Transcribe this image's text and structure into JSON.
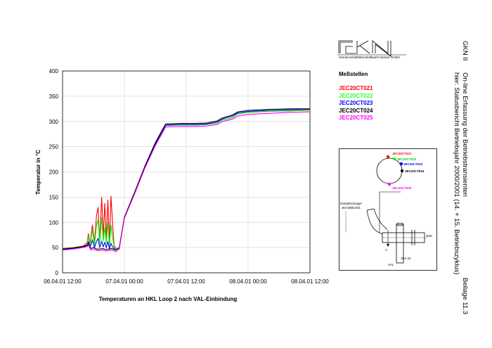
{
  "logo": {
    "text": "GKN",
    "subtitle": "Gemeinschaftskernkraftwerk Neckar GmbH"
  },
  "side_text": {
    "line1": "GKN II",
    "line2": "On-line Erfassung der Betriebstransienten",
    "line3": "hier: Statusbericht Betriebsjahr 2000/2001 (14. + 15. Betriebszyklus)",
    "line4": "Beilage 11.3"
  },
  "legend": {
    "title": "Meßstellen",
    "items": [
      {
        "label": "JEC20CT021",
        "color": "#ff0000"
      },
      {
        "label": "JEC20CT022",
        "color": "#00ff00"
      },
      {
        "label": "JEC20CT023",
        "color": "#0000ff"
      },
      {
        "label": "JEC20CT024",
        "color": "#000000"
      },
      {
        "label": "JEC20CT025",
        "color": "#ff00ff"
      }
    ]
  },
  "diagram": {
    "points": [
      "JEC20CT021",
      "JEC20CT022",
      "JEC20CT023",
      "JEC20CT024",
      "JEC20CT025"
    ],
    "label_damper": "Dampferzeuger",
    "label_damper_id": "JEA20BC001",
    "label_a": "A",
    "label_jna": "JNA 22",
    "label_val": "VAL",
    "label_jnd": "JND"
  },
  "chart_data": {
    "type": "line",
    "title": "Temperaturen an HKL Loop 2 nach VAL-Einbindung",
    "xlabel": "",
    "ylabel": "Temperatur in °C",
    "ylim": [
      0,
      400
    ],
    "yticks": [
      "0",
      "50",
      "100",
      "150",
      "200",
      "250",
      "300",
      "350",
      "400"
    ],
    "xlim_hours": [
      0,
      48
    ],
    "xticks": [
      "06.04.01 12:00",
      "07.04.01 00:00",
      "07.04.01 12:00",
      "08.04.01 00:00",
      "08.04.01 12:00"
    ],
    "grid": true,
    "series": [
      {
        "name": "JEC20CT021",
        "color": "#ff0000",
        "points": [
          [
            0,
            48
          ],
          [
            2,
            50
          ],
          [
            4,
            53
          ],
          [
            4.8,
            60
          ],
          [
            5,
            78
          ],
          [
            5.3,
            55
          ],
          [
            5.8,
            95
          ],
          [
            6.2,
            60
          ],
          [
            6.6,
            115
          ],
          [
            6.9,
            130
          ],
          [
            7.2,
            60
          ],
          [
            7.6,
            150
          ],
          [
            7.9,
            70
          ],
          [
            8.2,
            138
          ],
          [
            8.5,
            65
          ],
          [
            8.8,
            145
          ],
          [
            9.1,
            55
          ],
          [
            9.4,
            152
          ],
          [
            9.7,
            100
          ],
          [
            10,
            55
          ],
          [
            10.3,
            48
          ],
          [
            11,
            50
          ],
          [
            12,
            110
          ],
          [
            14,
            160
          ],
          [
            16,
            210
          ],
          [
            18,
            255
          ],
          [
            20,
            292
          ],
          [
            23,
            293
          ],
          [
            26,
            293
          ],
          [
            28,
            294
          ],
          [
            30,
            297
          ],
          [
            31,
            303
          ],
          [
            32,
            305
          ],
          [
            33,
            308
          ],
          [
            34,
            315
          ],
          [
            36,
            318
          ],
          [
            40,
            320
          ],
          [
            44,
            321
          ],
          [
            48,
            322
          ]
        ]
      },
      {
        "name": "JEC20CT022",
        "color": "#00ff00",
        "points": [
          [
            0,
            47
          ],
          [
            2,
            50
          ],
          [
            4,
            52
          ],
          [
            4.8,
            56
          ],
          [
            5,
            72
          ],
          [
            5.3,
            52
          ],
          [
            5.8,
            85
          ],
          [
            6.2,
            55
          ],
          [
            6.6,
            95
          ],
          [
            6.9,
            105
          ],
          [
            7.2,
            57
          ],
          [
            7.6,
            110
          ],
          [
            7.9,
            62
          ],
          [
            8.2,
            90
          ],
          [
            8.5,
            58
          ],
          [
            8.8,
            100
          ],
          [
            9.1,
            52
          ],
          [
            9.4,
            95
          ],
          [
            9.7,
            70
          ],
          [
            10,
            52
          ],
          [
            10.3,
            47
          ],
          [
            11,
            50
          ],
          [
            12,
            110
          ],
          [
            14,
            160
          ],
          [
            16,
            210
          ],
          [
            18,
            255
          ],
          [
            20,
            292
          ],
          [
            23,
            293
          ],
          [
            26,
            293
          ],
          [
            28,
            294
          ],
          [
            30,
            297
          ],
          [
            31,
            303
          ],
          [
            32,
            305
          ],
          [
            33,
            308
          ],
          [
            34,
            315
          ],
          [
            36,
            318
          ],
          [
            40,
            320
          ],
          [
            44,
            321
          ],
          [
            48,
            322
          ]
        ]
      },
      {
        "name": "JEC20CT023",
        "color": "#0000ff",
        "points": [
          [
            0,
            46
          ],
          [
            2,
            48
          ],
          [
            4,
            51
          ],
          [
            4.8,
            54
          ],
          [
            5,
            62
          ],
          [
            5.3,
            50
          ],
          [
            5.8,
            65
          ],
          [
            6.2,
            50
          ],
          [
            6.6,
            63
          ],
          [
            6.9,
            68
          ],
          [
            7.2,
            50
          ],
          [
            7.6,
            62
          ],
          [
            7.9,
            52
          ],
          [
            8.2,
            60
          ],
          [
            8.5,
            50
          ],
          [
            8.8,
            62
          ],
          [
            9.1,
            48
          ],
          [
            9.4,
            58
          ],
          [
            9.7,
            52
          ],
          [
            10,
            48
          ],
          [
            10.3,
            45
          ],
          [
            11,
            49
          ],
          [
            12,
            110
          ],
          [
            14,
            160
          ],
          [
            16,
            210
          ],
          [
            18,
            255
          ],
          [
            20,
            293
          ],
          [
            23,
            294
          ],
          [
            26,
            294
          ],
          [
            28,
            295
          ],
          [
            30,
            299
          ],
          [
            31,
            305
          ],
          [
            32,
            308
          ],
          [
            33,
            311
          ],
          [
            34,
            317
          ],
          [
            36,
            320
          ],
          [
            40,
            322
          ],
          [
            44,
            323
          ],
          [
            48,
            324
          ]
        ]
      },
      {
        "name": "JEC20CT024",
        "color": "#000000",
        "points": [
          [
            0,
            47
          ],
          [
            2,
            49
          ],
          [
            4,
            52
          ],
          [
            4.8,
            55
          ],
          [
            5,
            58
          ],
          [
            5.5,
            48
          ],
          [
            6,
            50
          ],
          [
            6.6,
            47
          ],
          [
            7.2,
            47
          ],
          [
            7.8,
            48
          ],
          [
            8.4,
            46
          ],
          [
            9,
            47
          ],
          [
            9.6,
            48
          ],
          [
            10,
            46
          ],
          [
            10.3,
            45
          ],
          [
            11,
            49
          ],
          [
            12,
            110
          ],
          [
            14,
            160
          ],
          [
            16,
            212
          ],
          [
            18,
            258
          ],
          [
            20,
            295
          ],
          [
            23,
            296
          ],
          [
            26,
            296
          ],
          [
            28,
            297
          ],
          [
            30,
            301
          ],
          [
            31,
            307
          ],
          [
            32,
            310
          ],
          [
            33,
            313
          ],
          [
            34,
            319
          ],
          [
            36,
            322
          ],
          [
            40,
            324
          ],
          [
            44,
            325
          ],
          [
            48,
            325
          ]
        ]
      },
      {
        "name": "JEC20CT025",
        "color": "#ff00ff",
        "points": [
          [
            0,
            45
          ],
          [
            2,
            47
          ],
          [
            4,
            50
          ],
          [
            4.8,
            52
          ],
          [
            5,
            55
          ],
          [
            5.5,
            45
          ],
          [
            6,
            47
          ],
          [
            6.6,
            44
          ],
          [
            7.2,
            44
          ],
          [
            7.8,
            45
          ],
          [
            8.4,
            43
          ],
          [
            9,
            44
          ],
          [
            9.6,
            45
          ],
          [
            10,
            43
          ],
          [
            10.3,
            42
          ],
          [
            11,
            47
          ],
          [
            12,
            108
          ],
          [
            14,
            157
          ],
          [
            16,
            208
          ],
          [
            18,
            252
          ],
          [
            20,
            289
          ],
          [
            23,
            290
          ],
          [
            26,
            290
          ],
          [
            28,
            291
          ],
          [
            30,
            294
          ],
          [
            31,
            300
          ],
          [
            32,
            302
          ],
          [
            33,
            305
          ],
          [
            34,
            311
          ],
          [
            36,
            314
          ],
          [
            40,
            316
          ],
          [
            44,
            318
          ],
          [
            48,
            319
          ]
        ]
      }
    ]
  }
}
